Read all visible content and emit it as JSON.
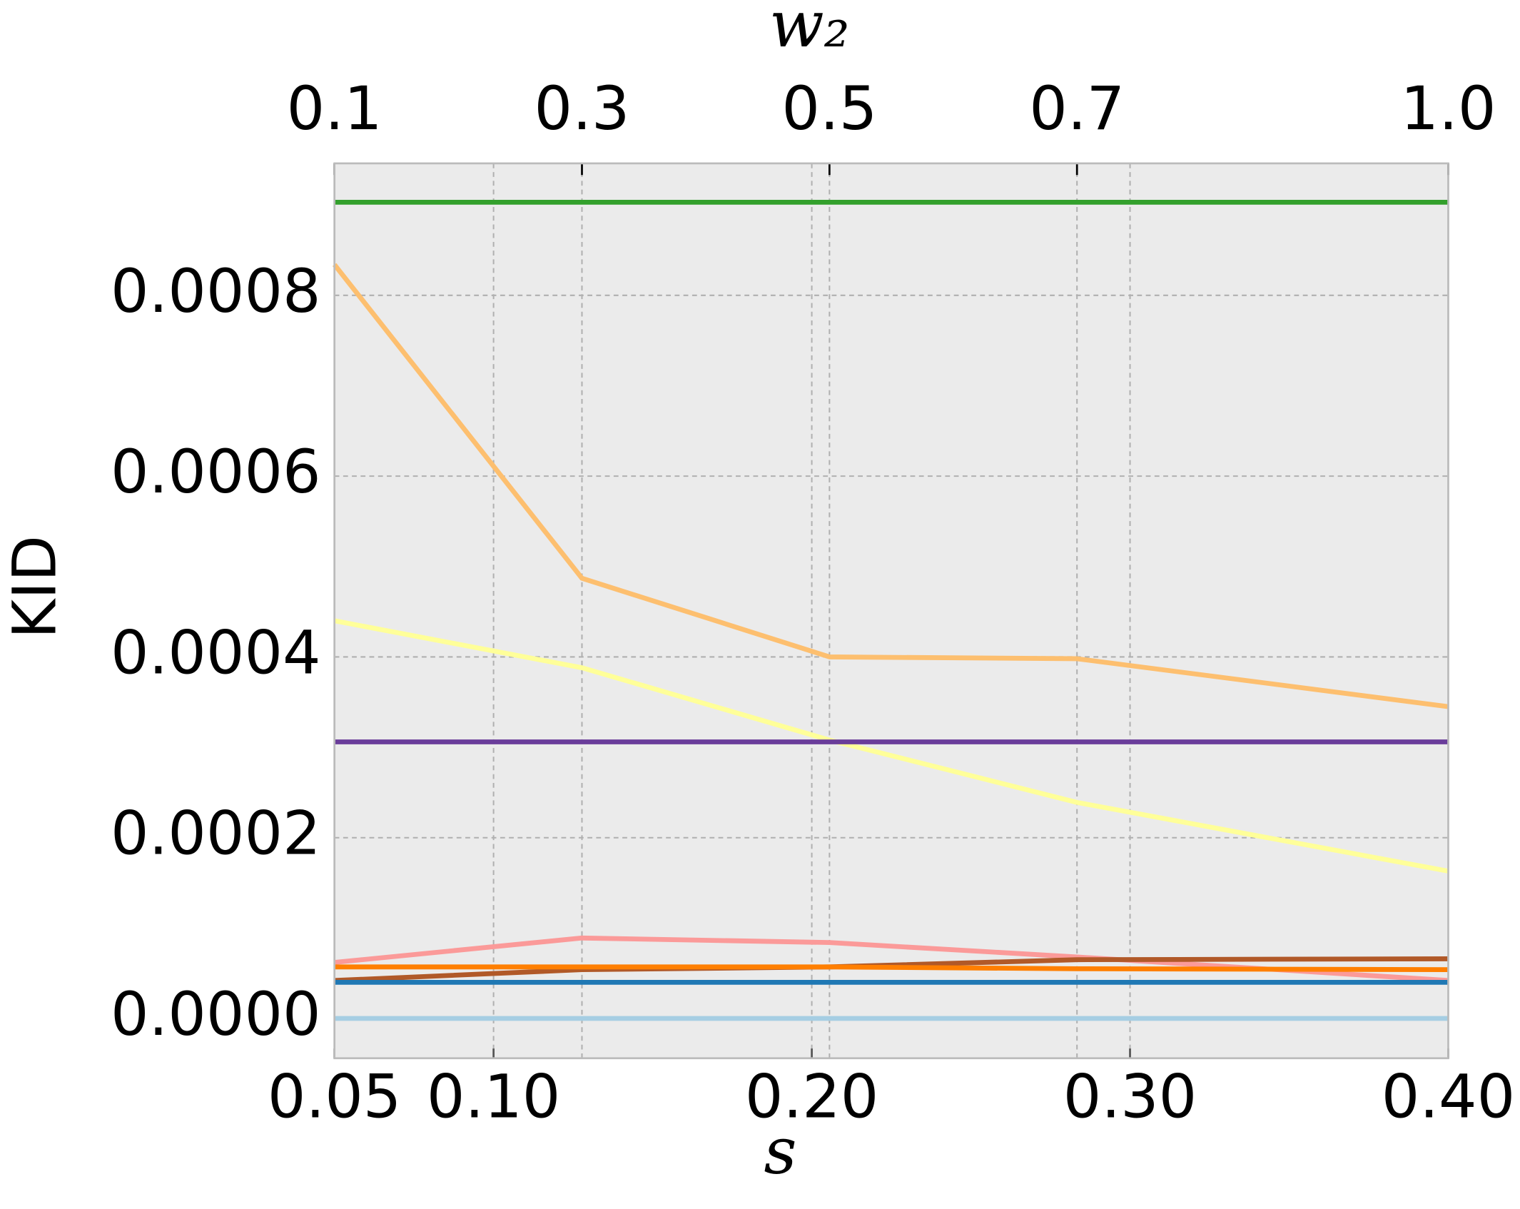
{
  "chart_data": {
    "type": "line",
    "ylabel": "KID",
    "xlabel": "s",
    "x2label": "w₂",
    "xlim": [
      0.05,
      0.4
    ],
    "xticks": [
      0.05,
      {
        "value": 0.1,
        "label": "0.10"
      },
      {
        "value": 0.2,
        "label": "0.20"
      },
      {
        "value": 0.3,
        "label": "0.30"
      },
      {
        "value": 0.4,
        "label": "0.40"
      }
    ],
    "x2lim": [
      0.1,
      1.0
    ],
    "x2ticks": [
      0.1,
      0.3,
      0.5,
      0.7,
      {
        "value": 1.0,
        "label": "1.0"
      }
    ],
    "ylim": [
      -4.4e-05,
      0.000946
    ],
    "yticks": [
      {
        "value": 0,
        "label": "0.0000"
      },
      {
        "value": 0.0002,
        "label": "0.0002"
      },
      {
        "value": 0.0004,
        "label": "0.0004"
      },
      {
        "value": 0.0006,
        "label": "0.0006"
      },
      {
        "value": 0.0008,
        "label": "0.0008"
      }
    ],
    "grid": true,
    "x": [
      0.1,
      0.3,
      0.5,
      0.7,
      1.0
    ],
    "series": [
      {
        "color": "#33a02c",
        "axis": "x2",
        "values": [
          0.000903,
          0.000903,
          0.000903,
          0.000903,
          0.000903
        ]
      },
      {
        "color": "#fdbf6f",
        "axis": "x2",
        "values": [
          0.000834,
          0.000487,
          0.0004,
          0.000398,
          0.000345
        ]
      },
      {
        "color": "#ffff99",
        "axis": "x2",
        "values": [
          0.00044,
          0.000388,
          0.000308,
          0.000239,
          0.000163
        ]
      },
      {
        "color": "#6a3d9a",
        "axis": "x2",
        "values": [
          0.000306,
          0.000306,
          0.000306,
          0.000306,
          0.000306
        ]
      },
      {
        "color": "#fb9a99",
        "axis": "x2",
        "values": [
          6.2e-05,
          8.9e-05,
          8.4e-05,
          6.8e-05,
          4.2e-05
        ]
      },
      {
        "color": "#b15928",
        "axis": "x2",
        "values": [
          4.2e-05,
          5.4e-05,
          5.7e-05,
          6.5e-05,
          6.6e-05
        ]
      },
      {
        "color": "#ff7f00",
        "axis": "x2",
        "values": [
          5.7e-05,
          5.7e-05,
          5.7e-05,
          5.5e-05,
          5.4e-05
        ]
      },
      {
        "color": "#1f78b4",
        "axis": "x2",
        "values": [
          4e-05,
          4e-05,
          4e-05,
          4e-05,
          4e-05
        ]
      },
      {
        "color": "#a6cee3",
        "axis": "x2",
        "values": [
          0,
          0,
          0,
          0,
          0
        ]
      }
    ]
  }
}
